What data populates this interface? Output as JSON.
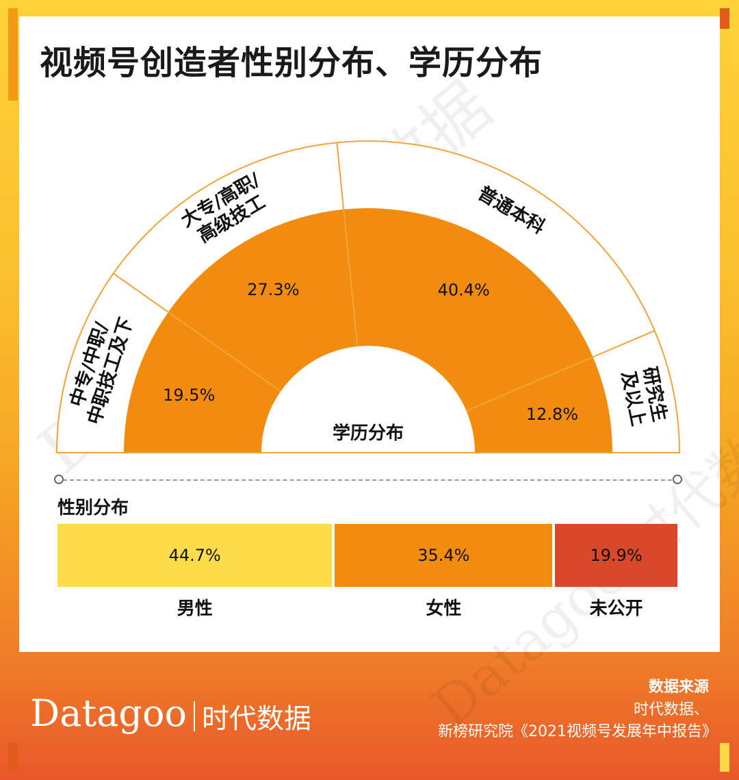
{
  "title": "视频号创造者性别分布、学历分布",
  "watermark_text": "Datagoo|时代数据",
  "colors": {
    "orange": "#f28c0f",
    "yellow": "#ffdd4a",
    "red": "#d9482b",
    "outline": "#f2a33a"
  },
  "chart_data": [
    {
      "type": "pie",
      "center_label": "学历分布",
      "categories": [
        "中专/中职/中职技工及下",
        "大专/高职/高级技工",
        "普通本科",
        "研究生及以上"
      ],
      "category_lines": [
        [
          "中专/中职/",
          "中职技工及下"
        ],
        [
          "大专/高职/",
          "高级技工"
        ],
        [
          "普通本科"
        ],
        [
          "研究生",
          "及以上"
        ]
      ],
      "values": [
        19.5,
        27.3,
        40.4,
        12.8
      ],
      "value_labels": [
        "19.5%",
        "27.3%",
        "40.4%",
        "12.8%"
      ]
    },
    {
      "type": "bar",
      "title": "性别分布",
      "categories": [
        "男性",
        "女性",
        "未公开"
      ],
      "values": [
        44.7,
        35.4,
        19.9
      ],
      "value_labels": [
        "44.7%",
        "35.4%",
        "19.9%"
      ]
    }
  ],
  "source": {
    "title": "数据来源",
    "line1": "时代数据、",
    "line2": "新榜研究院《2021视频号发展年中报告》"
  },
  "brand": {
    "latin": "Datagoo",
    "cn": "时代数据"
  }
}
